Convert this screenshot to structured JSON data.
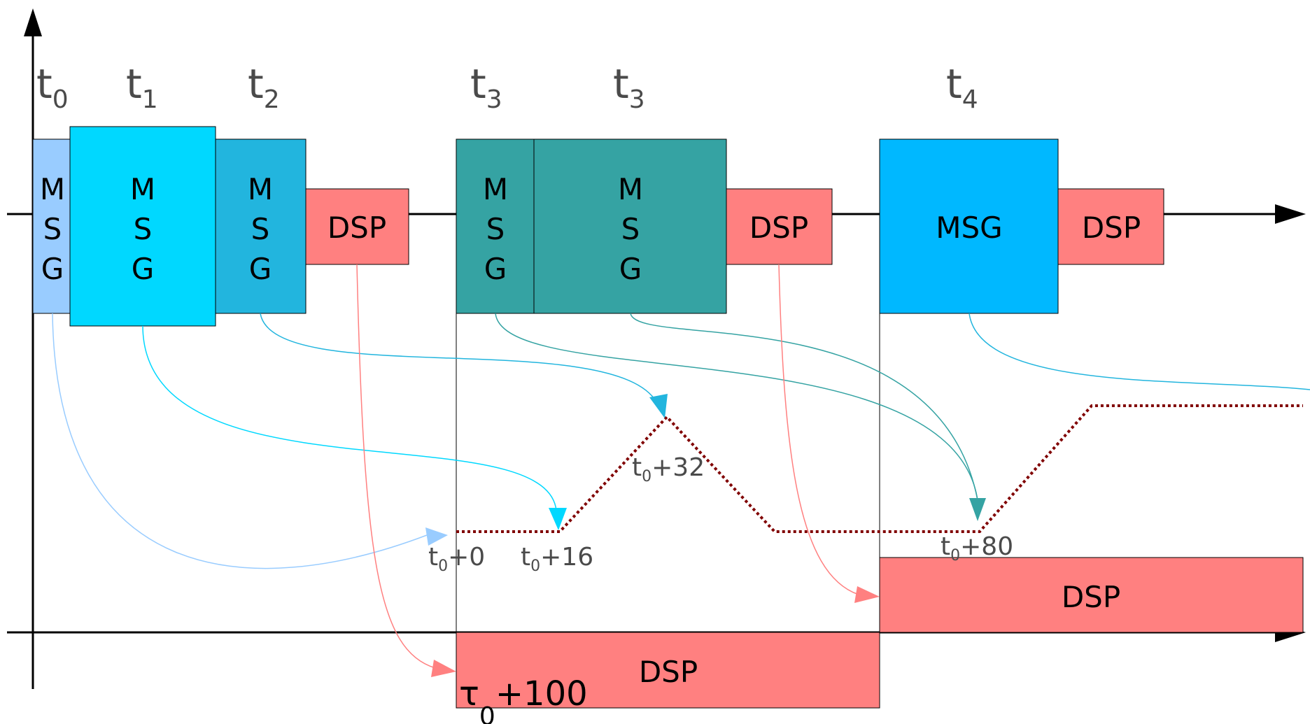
{
  "time_labels": [
    {
      "base": "t",
      "sub": "0"
    },
    {
      "base": "t",
      "sub": "1"
    },
    {
      "base": "t",
      "sub": "2"
    },
    {
      "base": "t",
      "sub": "3"
    },
    {
      "base": "t",
      "sub": "3"
    },
    {
      "base": "t",
      "sub": "4"
    }
  ],
  "boxes": {
    "msg_letters": [
      "M",
      "S",
      "G"
    ],
    "msg_word": "MSG",
    "dsp": "DSP"
  },
  "annotations": [
    {
      "base": "t",
      "sub": "0",
      "rest": "+0"
    },
    {
      "base": "t",
      "sub": "0",
      "rest": "+16"
    },
    {
      "base": "t",
      "sub": "0",
      "rest": "+32"
    },
    {
      "base": "t",
      "sub": "0",
      "rest": "+80"
    }
  ],
  "tau": {
    "base": "τ",
    "sub": "0",
    "rest": "+100"
  },
  "colors": {
    "msg0": "#99ccff",
    "msg1": "#00d8ff",
    "msg2": "#22b5de",
    "msg3": "#35a3a3",
    "msg4": "#00b8ff",
    "dsp": "#ff8080",
    "dotted": "#800000"
  }
}
